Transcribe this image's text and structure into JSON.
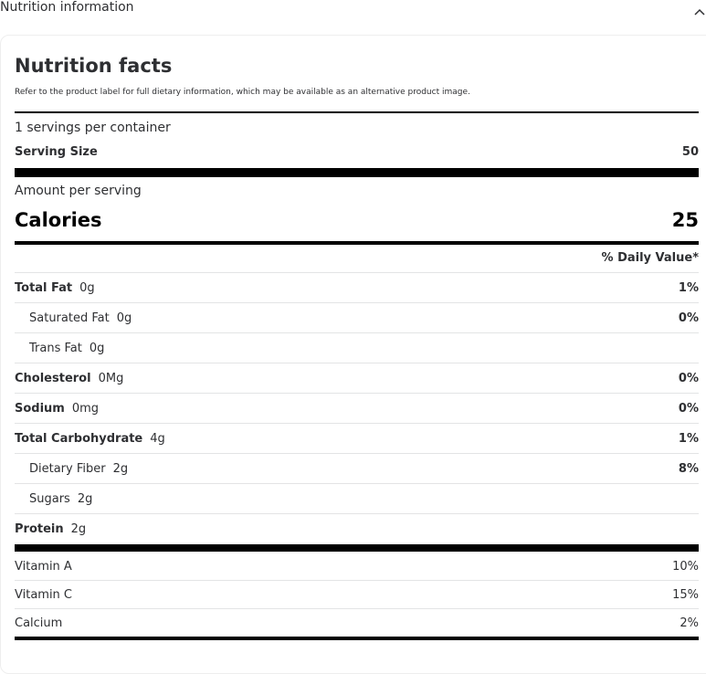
{
  "section": {
    "title": "Nutrition information",
    "toggle_icon": "chevron-up-icon"
  },
  "facts": {
    "title": "Nutrition facts",
    "disclaimer": "Refer to the product label for full dietary information, which may be available as an alternative product image.",
    "servings_per_container": "1 servings per container",
    "serving_size_label": "Serving Size",
    "serving_size_value": "50",
    "amount_per_serving": "Amount per serving",
    "calories_label": "Calories",
    "calories_value": "25",
    "daily_value_header": "% Daily Value*",
    "nutrients": [
      {
        "name": "Total Fat",
        "amount": "0g",
        "dv": "1%",
        "bold": true
      },
      {
        "name": "Saturated Fat",
        "amount": "0g",
        "dv": "0%",
        "bold": false
      },
      {
        "name": "Trans Fat",
        "amount": "0g",
        "dv": "",
        "bold": false
      },
      {
        "name": "Cholesterol",
        "amount": "0Mg",
        "dv": "0%",
        "bold": true
      },
      {
        "name": "Sodium",
        "amount": "0mg",
        "dv": "0%",
        "bold": true
      },
      {
        "name": "Total Carbohydrate",
        "amount": "4g",
        "dv": "1%",
        "bold": true
      },
      {
        "name": "Dietary Fiber",
        "amount": "2g",
        "dv": "8%",
        "bold": false
      },
      {
        "name": "Sugars",
        "amount": "2g",
        "dv": "",
        "bold": false
      },
      {
        "name": "Protein",
        "amount": "2g",
        "dv": "",
        "bold": true
      }
    ],
    "vitamins": [
      {
        "name": "Vitamin A",
        "dv": "10%"
      },
      {
        "name": "Vitamin C",
        "dv": "15%"
      },
      {
        "name": "Calcium",
        "dv": "2%"
      }
    ]
  }
}
